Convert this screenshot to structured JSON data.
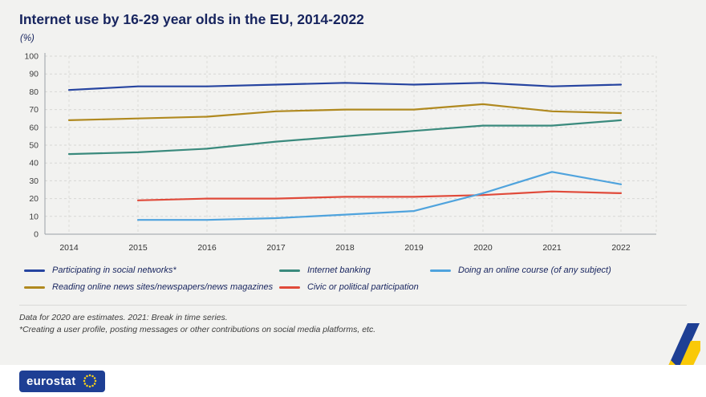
{
  "header": {
    "title": "Internet use by 16-29 year olds in the EU, 2014-2022",
    "subtitle": "(%)"
  },
  "chart_data": {
    "type": "line",
    "title": "Internet use by 16-29 year olds in the EU, 2014-2022",
    "ylabel": "(%)",
    "x": [
      2014,
      2015,
      2016,
      2017,
      2018,
      2019,
      2020,
      2021,
      2022
    ],
    "ylim": [
      0,
      100
    ],
    "ytick_step": 10,
    "grid": true,
    "legend_position": "bottom",
    "series": [
      {
        "name": "Participating in social networks*",
        "color": "#2644A0",
        "values": [
          81,
          83,
          83,
          84,
          85,
          84,
          85,
          83,
          84
        ]
      },
      {
        "name": "Reading online news sites/newspapers/news magazines",
        "color": "#B0891F",
        "values": [
          64,
          65,
          66,
          69,
          70,
          70,
          73,
          69,
          68
        ]
      },
      {
        "name": "Internet banking",
        "color": "#3A8A7D",
        "values": [
          45,
          46,
          48,
          52,
          55,
          58,
          61,
          61,
          64
        ]
      },
      {
        "name": "Civic or political participation",
        "color": "#E04A3A",
        "values": [
          null,
          19,
          20,
          20,
          21,
          21,
          22,
          24,
          23
        ]
      },
      {
        "name": "Doing an online course (of any subject)",
        "color": "#4FA3DD",
        "values": [
          null,
          8,
          8,
          9,
          11,
          13,
          23,
          35,
          28
        ]
      }
    ]
  },
  "footnotes": {
    "line1": "Data for 2020 are estimates. 2021: Break in time series.",
    "line2": "*Creating a user profile, posting messages or other contributions on social media platforms, etc."
  },
  "footer": {
    "logo_text": "eurostat"
  }
}
